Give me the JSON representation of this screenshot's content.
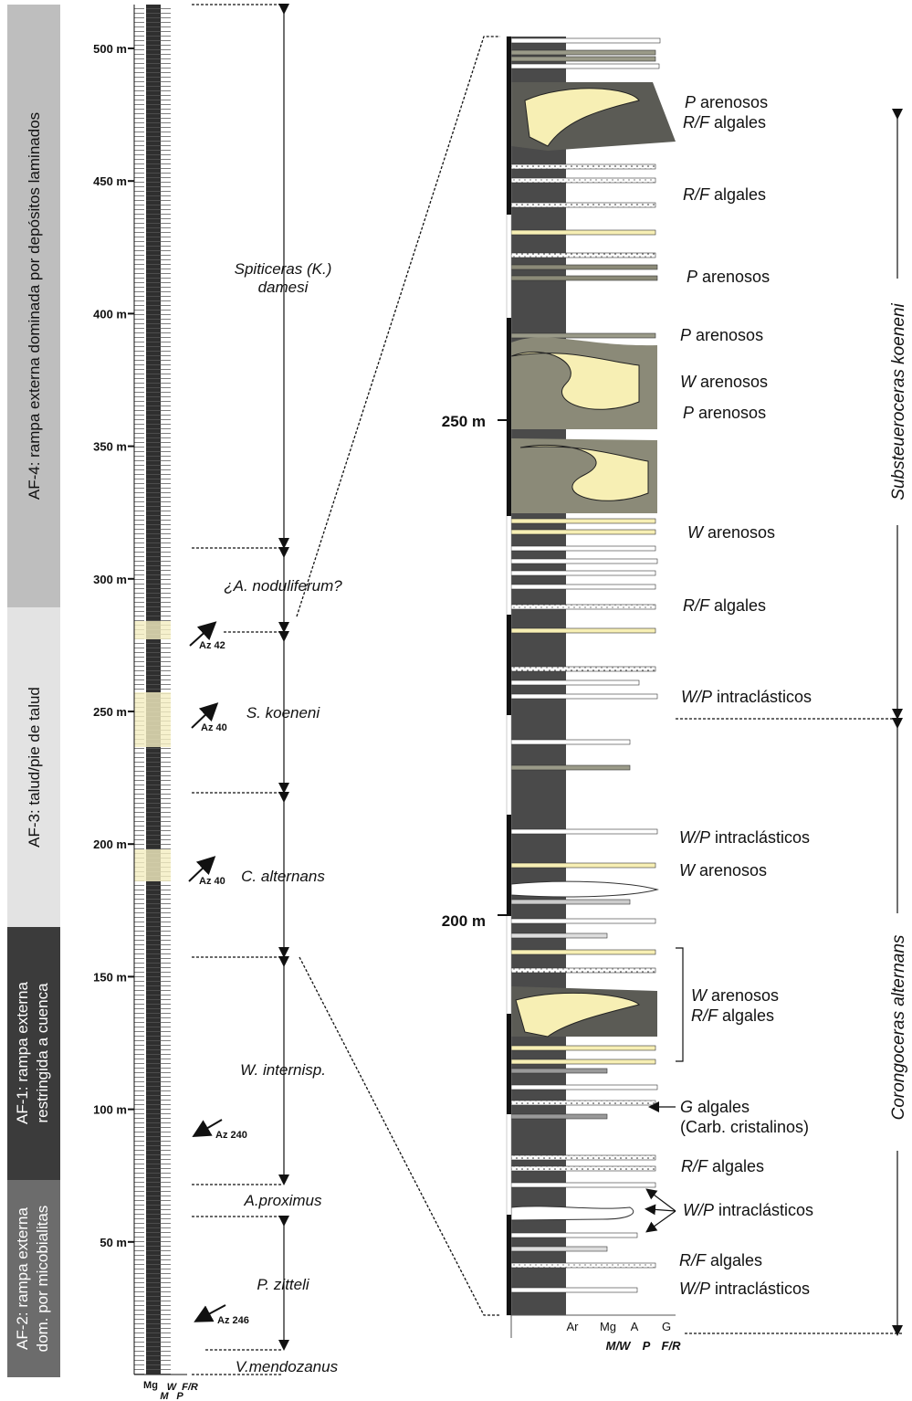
{
  "facies": [
    {
      "lines": [
        "AF-4: rampa externa dominada por depósitos laminados"
      ]
    },
    {
      "lines": [
        "AF-3: talud/pie de talud"
      ]
    },
    {
      "lines": [
        "AF-1: rampa externa",
        "restringida a cuenca"
      ]
    },
    {
      "lines": [
        "AF-2: rampa externa",
        "dom. por micobialitas"
      ]
    }
  ],
  "left_ticks": [
    "500 m",
    "450 m",
    "400 m",
    "350 m",
    "300 m",
    "250 m",
    "200 m",
    "150 m",
    "100 m",
    "50 m"
  ],
  "zones": [
    {
      "lines": [
        "Spiticeras (K.)",
        "damesi"
      ]
    },
    {
      "lines": [
        "¿A. noduliferum?"
      ]
    },
    {
      "lines": [
        "S. koeneni"
      ]
    },
    {
      "lines": [
        "C. alternans"
      ]
    },
    {
      "lines": [
        "W. internisp."
      ]
    },
    {
      "lines": [
        "A.proximus"
      ]
    },
    {
      "lines": [
        "P. zitteli"
      ]
    },
    {
      "lines": [
        "V.mendozanus"
      ]
    }
  ],
  "azimuths": [
    "Az 42",
    "Az 40",
    "Az 40",
    "Az 240",
    "Az 246"
  ],
  "left_scale": {
    "top": [
      "Mg",
      "W",
      "F/R"
    ],
    "bottom": [
      "M",
      "P"
    ]
  },
  "right_ticks": [
    "250 m",
    "200 m"
  ],
  "lithologies": [
    {
      "code": "P",
      "text": "arenosos"
    },
    {
      "code": "R/F",
      "text": "algales"
    },
    {
      "code": "R/F",
      "text": "algales"
    },
    {
      "code": "P",
      "text": "arenosos"
    },
    {
      "code": "P",
      "text": "arenosos"
    },
    {
      "code": "W",
      "text": "arenosos"
    },
    {
      "code": "P",
      "text": "arenosos"
    },
    {
      "code": "W",
      "text": "arenosos"
    },
    {
      "code": "R/F",
      "text": "algales"
    },
    {
      "code": "W/P",
      "text": "intraclásticos"
    },
    {
      "code": "W/P",
      "text": "intraclásticos"
    },
    {
      "code": "W",
      "text": "arenosos"
    },
    {
      "code": "W",
      "text": "arenosos"
    },
    {
      "code": "R/F",
      "text": "algales"
    },
    {
      "code": "G",
      "text": "algales",
      "note": "(Carb. cristalinos)"
    },
    {
      "code": "R/F",
      "text": "algales"
    },
    {
      "code": "W/P",
      "text": "intraclásticos"
    },
    {
      "code": "R/F",
      "text": "algales"
    },
    {
      "code": "W/P",
      "text": "intraclásticos"
    }
  ],
  "right_zones": [
    "Substeueroceras koeneni",
    "Corongoceras alternans"
  ],
  "right_scale": {
    "top": [
      "Ar",
      "Mg",
      "A",
      "G"
    ],
    "bottom": [
      "M/W",
      "P",
      "F/R"
    ]
  }
}
